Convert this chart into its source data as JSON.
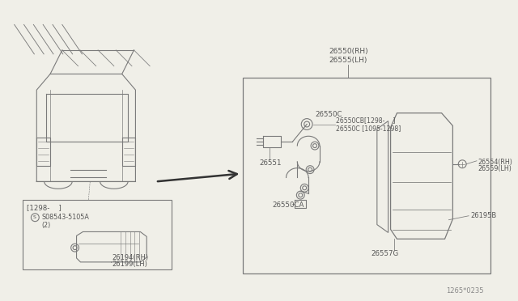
{
  "bg": "#f0efe8",
  "lc": "#7a7a7a",
  "tc": "#555555",
  "diagram_code": "1265*0235",
  "labels": {
    "26550_RH": "26550(RH)",
    "26555_LH": "26555(LH)",
    "26551": "26551",
    "26550C": "26550C",
    "26550CB": "26550CB[1298-    ]",
    "26550C2": "26550C [1095-1298]",
    "26554_RH": "26554(RH)",
    "26559_LH": "26559(LH)",
    "26550CA": "26550CA",
    "26557G": "26557G",
    "26195B": "26195B",
    "box_label": "[1298-    ]",
    "screw": "S08543-5105A",
    "screw2": "(2)",
    "26194_RH": "26194(RH)",
    "26199_LH": "26199(LH)"
  }
}
